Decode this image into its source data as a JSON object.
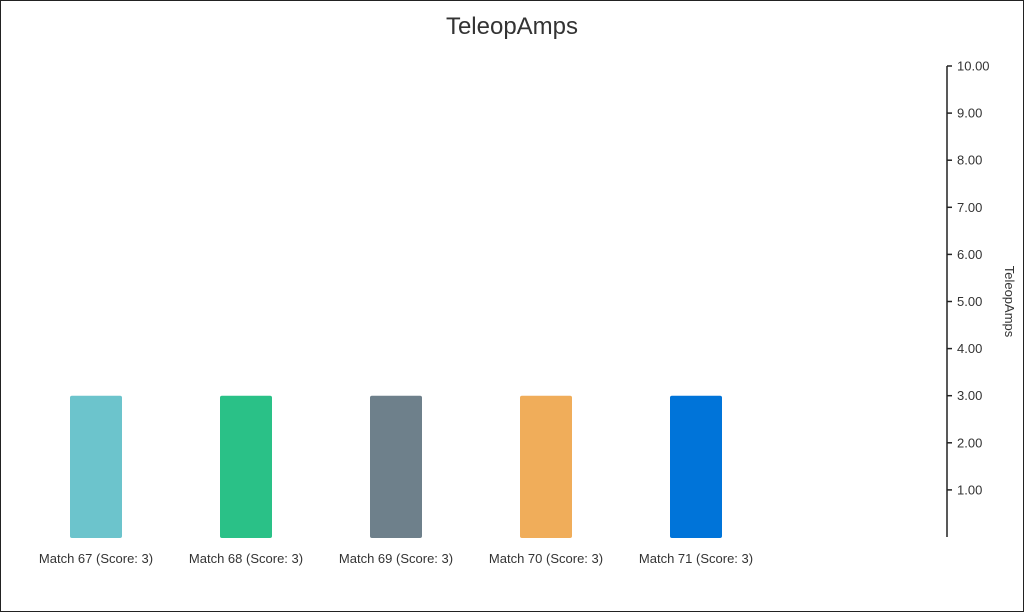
{
  "chart_data": {
    "type": "bar",
    "title": "TeleopAmps",
    "ylabel": "TeleopAmps",
    "xlabel": "",
    "categories": [
      "Match 67 (Score: 3)",
      "Match 68 (Score: 3)",
      "Match 69 (Score: 3)",
      "Match 70 (Score: 3)",
      "Match 71 (Score: 3)"
    ],
    "values": [
      3,
      3,
      3,
      3,
      3
    ],
    "colors": [
      "#6cc4cc",
      "#2ac187",
      "#6e808b",
      "#f0ad5a",
      "#0074d9"
    ],
    "ylim": [
      0,
      10
    ],
    "yticks": [
      "1.00",
      "2.00",
      "3.00",
      "4.00",
      "5.00",
      "6.00",
      "7.00",
      "8.00",
      "9.00",
      "10.00"
    ],
    "y_axis_position": "right",
    "grid": false,
    "legend": "none"
  }
}
